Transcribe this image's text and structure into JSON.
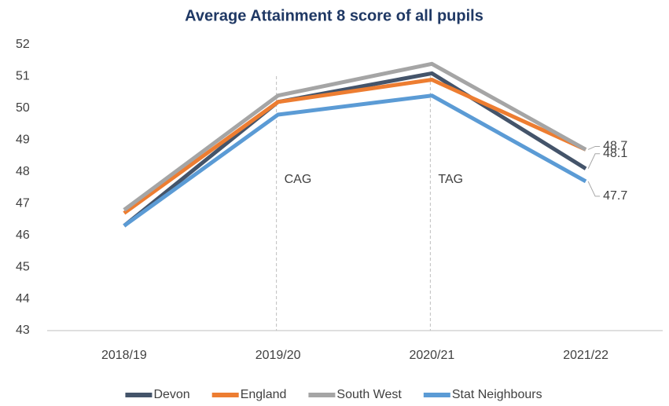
{
  "chart_data": {
    "type": "line",
    "title": "Average Attainment 8 score of all pupils",
    "categories": [
      "2018/19",
      "2019/20",
      "2020/21",
      "2021/22"
    ],
    "series": [
      {
        "name": "Devon",
        "color": "#44546a",
        "values": [
          46.3,
          50.2,
          51.1,
          48.1
        ],
        "value_labels": [
          null,
          null,
          null,
          "48.1"
        ]
      },
      {
        "name": "England",
        "color": "#ed7d31",
        "values": [
          46.7,
          50.2,
          50.9,
          48.7
        ]
      },
      {
        "name": "South West",
        "color": "#a5a5a5",
        "values": [
          46.8,
          50.4,
          51.4,
          48.7
        ],
        "value_labels": [
          null,
          null,
          null,
          "48.7"
        ]
      },
      {
        "name": "Stat Neighbours",
        "color": "#5b9bd5",
        "values": [
          46.3,
          49.8,
          50.4,
          47.7
        ],
        "value_labels": [
          null,
          null,
          null,
          "47.7"
        ]
      }
    ],
    "annotations": [
      {
        "text": "CAG",
        "x": "2019/20"
      },
      {
        "text": "TAG",
        "x": "2020/21"
      }
    ],
    "ylim": [
      43,
      52
    ],
    "yticks": [
      43,
      44,
      45,
      46,
      47,
      48,
      49,
      50,
      51,
      52
    ],
    "grid": false,
    "legend": "bottom"
  }
}
